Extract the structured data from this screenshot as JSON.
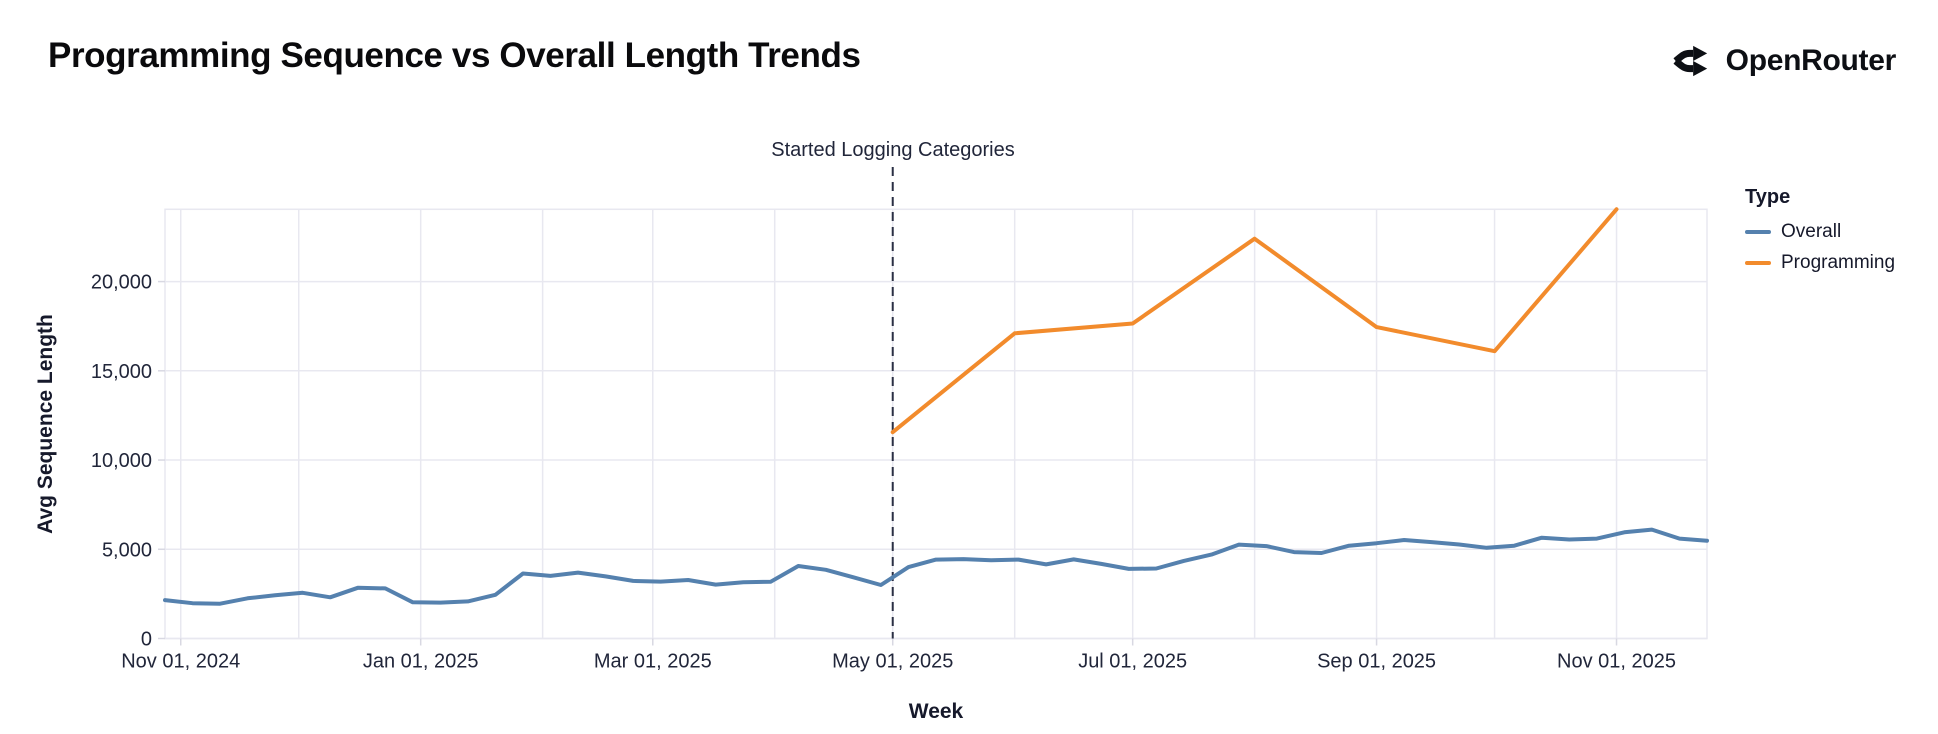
{
  "header": {
    "title": "Programming Sequence vs Overall Length Trends",
    "brand": "OpenRouter"
  },
  "chart_data": {
    "type": "line",
    "title": "Programming Sequence vs Overall Length Trends",
    "xlabel": "Week",
    "ylabel": "Avg Sequence Length",
    "x_domain": [
      "2024-10-28",
      "2025-11-24"
    ],
    "y_domain": [
      0,
      24050
    ],
    "grid": true,
    "x_grid_dates": [
      "2024-11-01",
      "2024-12-01",
      "2025-01-01",
      "2025-02-01",
      "2025-03-01",
      "2025-04-01",
      "2025-05-01",
      "2025-06-01",
      "2025-07-01",
      "2025-08-01",
      "2025-09-01",
      "2025-10-01",
      "2025-11-01"
    ],
    "x_tick_dates": [
      "2024-11-01",
      "2025-01-01",
      "2025-03-01",
      "2025-05-01",
      "2025-07-01",
      "2025-09-01",
      "2025-11-01"
    ],
    "x_tick_labels": [
      "Nov 01, 2024",
      "Jan 01, 2025",
      "Mar 01, 2025",
      "May 01, 2025",
      "Jul 01, 2025",
      "Sep 01, 2025",
      "Nov 01, 2025"
    ],
    "y_ticks": [
      0,
      5000,
      10000,
      15000,
      20000
    ],
    "y_tick_labels": [
      "0",
      "5,000",
      "10,000",
      "15,000",
      "20,000"
    ],
    "annotation": {
      "label": "Started Logging Categories",
      "date": "2025-05-01"
    },
    "legend": {
      "title": "Type",
      "position": "right",
      "items": [
        {
          "label": "Overall",
          "color": "#5581ae"
        },
        {
          "label": "Programming",
          "color": "#f28b2c"
        }
      ]
    },
    "series": [
      {
        "name": "Overall",
        "color": "#5581ae",
        "x": [
          "2024-10-28",
          "2024-11-04",
          "2024-11-11",
          "2024-11-18",
          "2024-11-25",
          "2024-12-02",
          "2024-12-09",
          "2024-12-16",
          "2024-12-23",
          "2024-12-30",
          "2025-01-06",
          "2025-01-13",
          "2025-01-20",
          "2025-01-27",
          "2025-02-03",
          "2025-02-10",
          "2025-02-17",
          "2025-02-24",
          "2025-03-03",
          "2025-03-10",
          "2025-03-17",
          "2025-03-24",
          "2025-03-31",
          "2025-04-07",
          "2025-04-14",
          "2025-04-21",
          "2025-04-28",
          "2025-05-05",
          "2025-05-12",
          "2025-05-19",
          "2025-05-26",
          "2025-06-02",
          "2025-06-09",
          "2025-06-16",
          "2025-06-23",
          "2025-06-30",
          "2025-07-07",
          "2025-07-14",
          "2025-07-21",
          "2025-07-28",
          "2025-08-04",
          "2025-08-11",
          "2025-08-18",
          "2025-08-25",
          "2025-09-01",
          "2025-09-08",
          "2025-09-15",
          "2025-09-22",
          "2025-09-29",
          "2025-10-06",
          "2025-10-13",
          "2025-10-20",
          "2025-10-27",
          "2025-11-03",
          "2025-11-10",
          "2025-11-17",
          "2025-11-24"
        ],
        "values": [
          2150,
          1980,
          1950,
          2250,
          2420,
          2560,
          2310,
          2840,
          2810,
          2030,
          2010,
          2080,
          2450,
          3640,
          3510,
          3690,
          3480,
          3230,
          3190,
          3280,
          3020,
          3150,
          3180,
          4060,
          3850,
          3430,
          3000,
          4000,
          4420,
          4450,
          4380,
          4420,
          4150,
          4430,
          4180,
          3900,
          3920,
          4350,
          4700,
          5260,
          5180,
          4840,
          4790,
          5200,
          5340,
          5520,
          5400,
          5270,
          5080,
          5200,
          5650,
          5550,
          5600,
          5950,
          6100,
          5600,
          5480
        ]
      },
      {
        "name": "Programming",
        "color": "#f28b2c",
        "x": [
          "2025-05-01",
          "2025-06-01",
          "2025-07-01",
          "2025-08-01",
          "2025-09-01",
          "2025-10-01",
          "2025-11-01"
        ],
        "values": [
          11560,
          17100,
          17650,
          22400,
          17450,
          16100,
          24050
        ]
      }
    ]
  }
}
